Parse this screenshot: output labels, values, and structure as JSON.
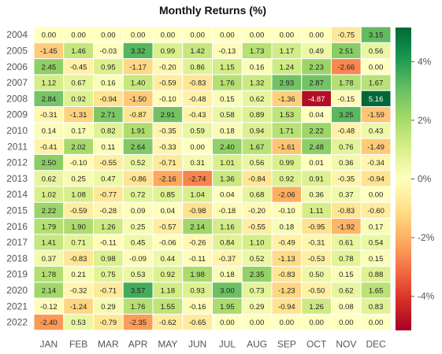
{
  "chart_data": {
    "type": "heatmap",
    "title": "Monthly Returns (%)",
    "xlabel": "",
    "ylabel": "",
    "months": [
      "JAN",
      "FEB",
      "MAR",
      "APR",
      "MAY",
      "JUN",
      "JUL",
      "AUG",
      "SEP",
      "OCT",
      "NOV",
      "DEC"
    ],
    "years": [
      "2004",
      "2005",
      "2006",
      "2007",
      "2008",
      "2009",
      "2010",
      "2011",
      "2012",
      "2013",
      "2014",
      "2015",
      "2016",
      "2017",
      "2018",
      "2019",
      "2020",
      "2021",
      "2022"
    ],
    "values": [
      [
        0.0,
        0.0,
        0.0,
        0.0,
        0.0,
        0.0,
        0.0,
        0.0,
        0.0,
        0.0,
        -0.75,
        3.15
      ],
      [
        -1.45,
        1.46,
        -0.03,
        3.32,
        0.99,
        1.42,
        -0.13,
        1.73,
        1.17,
        0.49,
        2.51,
        0.56
      ],
      [
        2.45,
        -0.45,
        0.95,
        -1.17,
        -0.2,
        0.86,
        1.15,
        0.16,
        1.24,
        2.23,
        -2.66,
        0.0
      ],
      [
        1.12,
        0.67,
        0.16,
        1.4,
        -0.59,
        -0.83,
        1.76,
        1.32,
        2.93,
        2.87,
        1.78,
        1.67
      ],
      [
        2.84,
        0.92,
        -0.94,
        -1.5,
        -0.1,
        -0.48,
        0.15,
        0.62,
        -1.36,
        -4.87,
        -0.15,
        5.16
      ],
      [
        -0.31,
        -1.31,
        2.71,
        -0.87,
        2.91,
        -0.43,
        0.58,
        0.89,
        1.53,
        0.04,
        3.25,
        -1.59
      ],
      [
        0.14,
        0.17,
        0.82,
        1.91,
        -0.35,
        0.59,
        0.18,
        0.94,
        1.71,
        2.22,
        -0.48,
        0.43
      ],
      [
        -0.41,
        2.02,
        0.11,
        2.64,
        -0.33,
        -0.0,
        2.4,
        1.67,
        -1.61,
        2.48,
        0.76,
        -1.49
      ],
      [
        2.5,
        -0.1,
        -0.55,
        0.52,
        -0.71,
        0.31,
        1.01,
        0.56,
        0.99,
        0.01,
        0.36,
        -0.34
      ],
      [
        0.62,
        0.25,
        0.47,
        -0.86,
        -2.16,
        -2.74,
        1.36,
        -0.84,
        0.92,
        0.91,
        -0.35,
        -0.94
      ],
      [
        1.02,
        1.08,
        -0.77,
        0.72,
        0.85,
        1.04,
        0.04,
        0.68,
        -2.06,
        0.36,
        0.37,
        0.0
      ],
      [
        2.22,
        -0.59,
        -0.28,
        0.09,
        0.04,
        -0.98,
        -0.18,
        -0.2,
        -0.1,
        1.11,
        -0.83,
        -0.6
      ],
      [
        1.79,
        1.9,
        1.26,
        0.25,
        -0.57,
        2.14,
        1.16,
        -0.55,
        0.18,
        -0.95,
        -1.92,
        0.17
      ],
      [
        1.41,
        0.71,
        -0.11,
        0.45,
        -0.06,
        -0.26,
        0.84,
        1.1,
        -0.49,
        -0.31,
        0.61,
        0.54
      ],
      [
        0.37,
        -0.83,
        0.98,
        -0.09,
        0.44,
        -0.11,
        -0.37,
        0.52,
        -1.13,
        -0.53,
        0.78,
        0.15
      ],
      [
        1.78,
        0.21,
        0.75,
        0.53,
        0.92,
        1.98,
        0.18,
        2.35,
        -0.83,
        0.5,
        0.15,
        0.88
      ],
      [
        2.14,
        -0.32,
        -0.71,
        3.57,
        1.18,
        0.93,
        3.0,
        0.73,
        -1.23,
        -0.5,
        0.62,
        1.65
      ],
      [
        -0.12,
        -1.24,
        0.29,
        1.76,
        1.55,
        -0.16,
        1.95,
        0.29,
        -0.94,
        1.26,
        0.08,
        0.83
      ],
      [
        -2.4,
        0.53,
        -0.79,
        -2.35,
        -0.62,
        -0.65,
        0.0,
        0.0,
        0.0,
        0.0,
        0.0,
        0.0
      ]
    ],
    "color_scale": {
      "colormap": "RdYlGn",
      "vmin": -5.16,
      "vmax": 5.16,
      "ticks": [
        "-4%",
        "-2%",
        "0%",
        "2%",
        "4%"
      ],
      "tick_values": [
        -4,
        -2,
        0,
        2,
        4
      ]
    },
    "grid": false,
    "cell_border_color": "#ffffff"
  }
}
